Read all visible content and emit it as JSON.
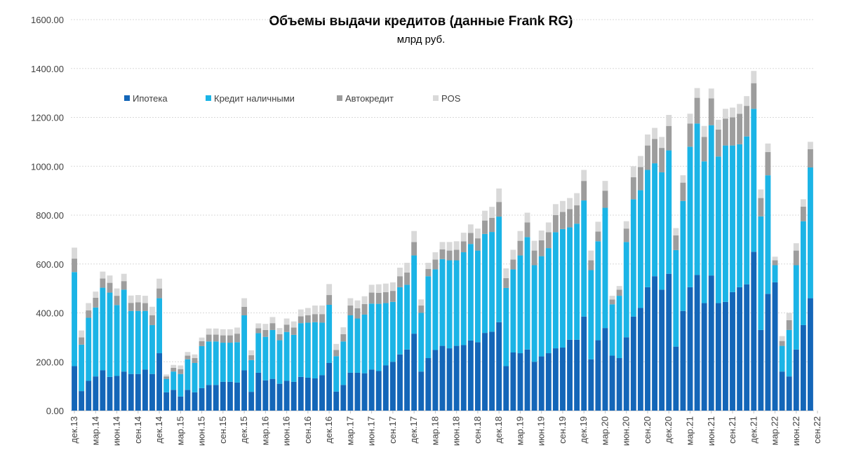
{
  "chart_data": {
    "type": "bar",
    "stacked": true,
    "title": "Объемы выдачи кредитов (данные Frank RG)",
    "subtitle": "млрд руб.",
    "ylim": [
      0,
      1600
    ],
    "yticks": [
      "0.00",
      "200.00",
      "400.00",
      "600.00",
      "800.00",
      "1000.00",
      "1200.00",
      "1400.00",
      "1600.00"
    ],
    "grid": true,
    "legend_position": "top-left",
    "colors": {
      "mortgage": "#1466b8",
      "cash": "#1bb4e6",
      "auto": "#9d9d9d",
      "pos": "#d9d9d9"
    },
    "x_tick_labels": [
      "дек.13",
      "мар.14",
      "июн.14",
      "сен.14",
      "дек.14",
      "мар.15",
      "июн.15",
      "сен.15",
      "дек.15",
      "мар.16",
      "июн.16",
      "сен.16",
      "дек.16",
      "мар.17",
      "июн.17",
      "сен.17",
      "дек.17",
      "мар.18",
      "июн.18",
      "сен.18",
      "дек.18",
      "мар.19",
      "июн.19",
      "сен.19",
      "дек.19",
      "мар.20",
      "июн.20",
      "сен.20",
      "дек.20",
      "мар.21",
      "июн.21",
      "сен.21",
      "дек.21",
      "мар.22",
      "июн.22",
      "сен.22"
    ],
    "series": [
      {
        "key": "mortgage",
        "name": "Ипотека",
        "values": [
          182,
          80,
          122,
          140,
          165,
          138,
          142,
          160,
          150,
          150,
          168,
          150,
          235,
          75,
          85,
          58,
          85,
          75,
          92,
          105,
          105,
          118,
          118,
          115,
          165,
          77,
          155,
          124,
          130,
          110,
          122,
          118,
          138,
          135,
          132,
          145,
          195,
          78,
          105,
          155,
          155,
          153,
          168,
          162,
          185,
          200,
          230,
          250,
          315,
          160,
          215,
          248,
          265,
          255,
          265,
          268,
          287,
          280,
          318,
          323,
          362,
          182,
          238,
          235,
          250,
          200,
          222,
          235,
          255,
          258,
          290,
          290,
          385,
          210,
          288,
          338,
          225,
          215,
          300,
          385,
          420,
          505,
          550,
          495,
          560,
          262,
          408,
          505,
          555,
          440,
          553,
          440,
          445,
          485,
          505,
          517,
          650,
          330,
          478,
          525,
          160,
          140,
          250,
          350,
          460
        ],
        "note": "values read off stacked bars, estimated from gridlines"
      },
      {
        "key": "cash",
        "name": "Кредит наличными",
        "values": [
          385,
          190,
          258,
          282,
          338,
          345,
          290,
          335,
          258,
          258,
          240,
          200,
          225,
          55,
          75,
          92,
          125,
          120,
          172,
          178,
          178,
          160,
          160,
          165,
          225,
          130,
          162,
          178,
          200,
          178,
          200,
          192,
          220,
          225,
          230,
          215,
          238,
          145,
          178,
          235,
          222,
          240,
          270,
          275,
          255,
          245,
          275,
          265,
          320,
          240,
          335,
          330,
          355,
          360,
          350,
          380,
          395,
          375,
          405,
          408,
          432,
          320,
          340,
          400,
          460,
          395,
          410,
          430,
          475,
          485,
          460,
          475,
          475,
          365,
          405,
          492,
          210,
          255,
          390,
          480,
          482,
          480,
          462,
          480,
          505,
          395,
          450,
          575,
          620,
          580,
          615,
          600,
          640,
          600,
          585,
          605,
          585,
          465,
          485,
          70,
          105,
          190,
          345,
          425,
          535
        ],
        "note": "values read off stacked bars, estimated from gridlines"
      },
      {
        "key": "auto",
        "name": "Автокредит",
        "values": [
          55,
          30,
          30,
          40,
          38,
          40,
          38,
          35,
          33,
          35,
          32,
          40,
          40,
          10,
          15,
          20,
          15,
          20,
          20,
          28,
          28,
          30,
          30,
          35,
          35,
          20,
          20,
          28,
          28,
          25,
          30,
          30,
          28,
          30,
          33,
          35,
          40,
          25,
          30,
          40,
          42,
          43,
          45,
          45,
          45,
          45,
          45,
          50,
          55,
          30,
          30,
          40,
          40,
          40,
          43,
          45,
          45,
          50,
          55,
          58,
          60,
          40,
          40,
          60,
          60,
          60,
          65,
          65,
          70,
          70,
          75,
          75,
          80,
          40,
          40,
          70,
          20,
          25,
          55,
          90,
          95,
          100,
          100,
          100,
          100,
          60,
          75,
          95,
          105,
          100,
          110,
          110,
          110,
          115,
          125,
          125,
          105,
          75,
          95,
          20,
          20,
          40,
          60,
          60,
          75
        ],
        "note": "values read off stacked bars, estimated from gridlines"
      },
      {
        "key": "pos",
        "name": "POS",
        "values": [
          45,
          28,
          30,
          25,
          28,
          30,
          30,
          30,
          30,
          30,
          30,
          35,
          40,
          8,
          12,
          15,
          15,
          15,
          15,
          25,
          25,
          25,
          25,
          25,
          35,
          20,
          20,
          25,
          25,
          25,
          25,
          25,
          28,
          30,
          35,
          35,
          45,
          25,
          28,
          30,
          32,
          32,
          32,
          35,
          35,
          35,
          35,
          40,
          45,
          25,
          25,
          30,
          30,
          35,
          35,
          35,
          35,
          40,
          40,
          45,
          55,
          40,
          40,
          40,
          40,
          40,
          40,
          40,
          45,
          45,
          45,
          50,
          45,
          40,
          40,
          40,
          15,
          15,
          30,
          45,
          45,
          45,
          45,
          45,
          45,
          30,
          30,
          40,
          40,
          45,
          40,
          40,
          40,
          40,
          40,
          40,
          50,
          35,
          35,
          15,
          20,
          30,
          30,
          30,
          30
        ],
        "note": "values read off stacked bars, estimated from gridlines"
      }
    ]
  }
}
